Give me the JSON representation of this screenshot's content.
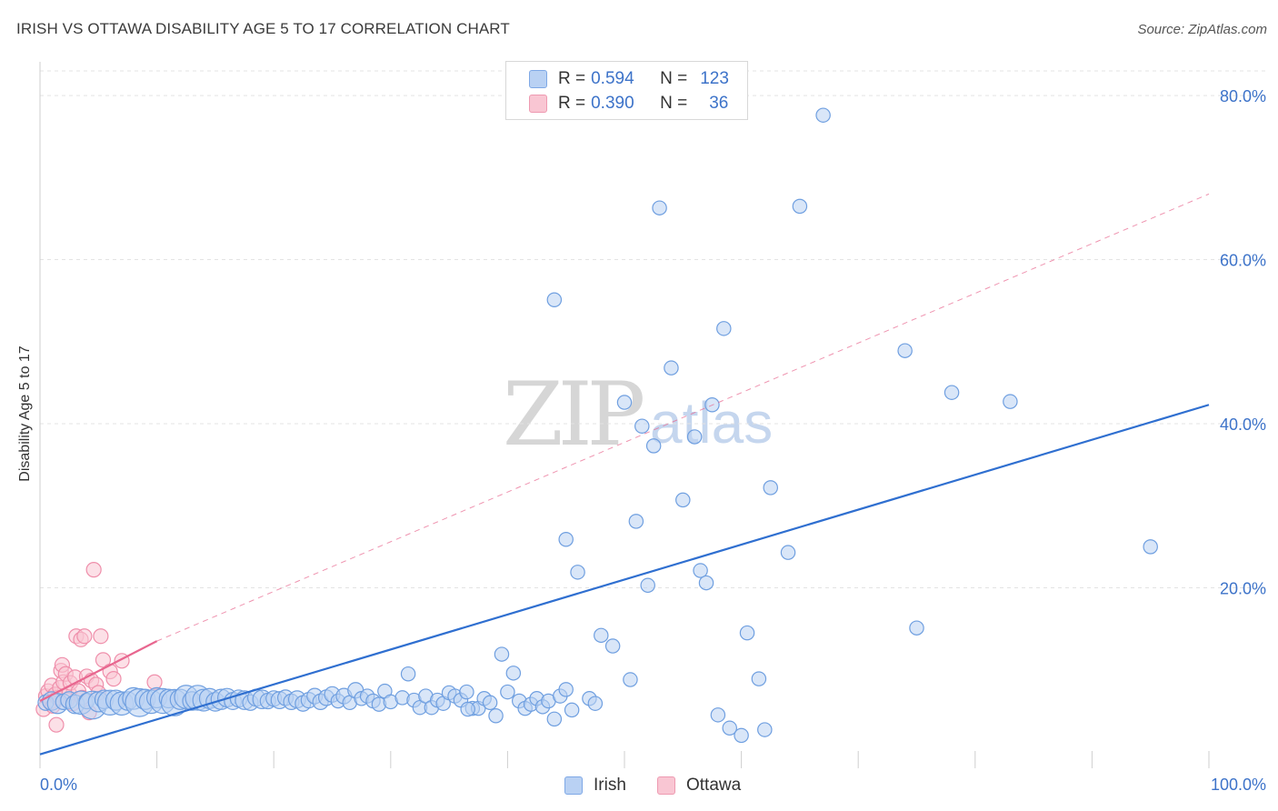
{
  "header": {
    "title": "IRISH VS OTTAWA DISABILITY AGE 5 TO 17 CORRELATION CHART",
    "source": "Source: ZipAtlas.com"
  },
  "watermark": {
    "zip": "ZIP",
    "atlas": "atlas"
  },
  "legend": {
    "irish": {
      "r_label": "R =",
      "r_value": "0.594",
      "n_label": "N =",
      "n_value": "123"
    },
    "ottawa": {
      "r_label": "R =",
      "r_value": "0.390",
      "n_label": "N =",
      "n_value": "36"
    }
  },
  "bottom_legend": {
    "irish": "Irish",
    "ottawa": "Ottawa"
  },
  "colors": {
    "irish_fill": "#b9d1f3",
    "irish_stroke": "#6f9fe0",
    "irish_line": "#2f6fd0",
    "ottawa_fill": "#f9c6d3",
    "ottawa_stroke": "#ef8fab",
    "ottawa_line": "#e8668f",
    "grid": "#e3e3e3",
    "tick_label": "#3d73c9"
  },
  "chart_data": {
    "type": "scatter",
    "title": "IRISH VS OTTAWA DISABILITY AGE 5 TO 17 CORRELATION CHART",
    "xlabel": "",
    "ylabel": "Disability Age 5 to 17",
    "xlim": [
      0,
      100
    ],
    "ylim": [
      -2,
      83
    ],
    "x_tick_labels": [
      "0.0%",
      "100.0%"
    ],
    "y_ticks": [
      20,
      40,
      60,
      80
    ],
    "y_tick_labels": [
      "20.0%",
      "40.0%",
      "60.0%",
      "80.0%"
    ],
    "grid": true,
    "legend_position": "top-center",
    "series": [
      {
        "name": "Irish",
        "R": 0.594,
        "N": 123,
        "trend": {
          "x0": 0,
          "y0": -0.3,
          "x1": 100,
          "y1": 42.3
        },
        "points": [
          [
            0.5,
            6.0,
            1.0
          ],
          [
            1.0,
            6.2,
            1.2
          ],
          [
            1.5,
            5.9,
            1.3
          ],
          [
            2.0,
            6.1,
            1.0
          ],
          [
            2.5,
            6.3,
            1.1
          ],
          [
            3.0,
            5.8,
            1.2
          ],
          [
            3.5,
            6.0,
            1.5
          ],
          [
            4.0,
            6.2,
            1.0
          ],
          [
            4.5,
            5.7,
            1.8
          ],
          [
            5.0,
            6.1,
            1.3
          ],
          [
            5.5,
            6.4,
            1.2
          ],
          [
            6.0,
            6.0,
            1.6
          ],
          [
            6.5,
            6.3,
            1.3
          ],
          [
            7.0,
            5.9,
            1.5
          ],
          [
            7.5,
            6.2,
            1.2
          ],
          [
            8.0,
            6.5,
            1.4
          ],
          [
            8.5,
            6.0,
            1.8
          ],
          [
            9.0,
            6.4,
            1.3
          ],
          [
            9.5,
            6.1,
            1.5
          ],
          [
            10.0,
            6.6,
            1.3
          ],
          [
            10.5,
            6.2,
            1.6
          ],
          [
            11.0,
            6.5,
            1.2
          ],
          [
            11.5,
            6.0,
            1.7
          ],
          [
            12.0,
            6.4,
            1.3
          ],
          [
            12.5,
            6.7,
            1.5
          ],
          [
            13.0,
            6.2,
            1.2
          ],
          [
            13.5,
            6.6,
            1.6
          ],
          [
            14.0,
            6.3,
            1.4
          ],
          [
            14.5,
            6.5,
            1.3
          ],
          [
            15.0,
            6.1,
            1.2
          ],
          [
            15.5,
            6.4,
            1.3
          ],
          [
            16.0,
            6.6,
            1.2
          ],
          [
            16.5,
            6.2,
            1.1
          ],
          [
            17.0,
            6.5,
            1.1
          ],
          [
            17.5,
            6.3,
            1.2
          ],
          [
            18.0,
            6.0,
            1.0
          ],
          [
            18.5,
            6.6,
            1.1
          ],
          [
            19.0,
            6.4,
            1.2
          ],
          [
            19.5,
            6.2,
            1.0
          ],
          [
            20.0,
            6.5,
            1.0
          ],
          [
            20.5,
            6.3,
            1.1
          ],
          [
            21.0,
            6.6,
            1.0
          ],
          [
            21.5,
            6.1,
            1.0
          ],
          [
            22.0,
            6.4,
            1.1
          ],
          [
            22.5,
            5.9,
            1.0
          ],
          [
            23.0,
            6.3,
            1.0
          ],
          [
            23.5,
            6.8,
            1.0
          ],
          [
            24.0,
            6.1,
            1.0
          ],
          [
            24.5,
            6.6,
            1.0
          ],
          [
            25.0,
            7.0,
            1.0
          ],
          [
            25.5,
            6.2,
            0.9
          ],
          [
            26.0,
            6.8,
            1.0
          ],
          [
            26.5,
            6.0,
            0.9
          ],
          [
            27.0,
            7.5,
            1.0
          ],
          [
            27.5,
            6.5,
            0.9
          ],
          [
            28.0,
            6.8,
            0.9
          ],
          [
            28.5,
            6.2,
            0.9
          ],
          [
            29.0,
            5.8,
            0.9
          ],
          [
            29.5,
            7.4,
            0.9
          ],
          [
            30.0,
            6.1,
            0.9
          ],
          [
            31.0,
            6.6,
            0.9
          ],
          [
            31.5,
            9.5,
            0.9
          ],
          [
            32.0,
            6.3,
            0.9
          ],
          [
            32.5,
            5.4,
            0.9
          ],
          [
            33.0,
            6.8,
            0.9
          ],
          [
            33.5,
            5.4,
            0.9
          ],
          [
            34.0,
            6.3,
            0.9
          ],
          [
            34.5,
            5.9,
            0.9
          ],
          [
            35.0,
            7.2,
            0.9
          ],
          [
            35.5,
            6.8,
            0.9
          ],
          [
            36.0,
            6.3,
            0.9
          ],
          [
            36.5,
            7.3,
            0.9
          ],
          [
            37.0,
            5.3,
            0.9
          ],
          [
            37.5,
            5.3,
            0.9
          ],
          [
            38.0,
            6.5,
            0.9
          ],
          [
            38.5,
            6.0,
            0.9
          ],
          [
            39.0,
            4.4,
            0.9
          ],
          [
            39.5,
            11.9,
            0.9
          ],
          [
            40.0,
            7.3,
            0.9
          ],
          [
            40.5,
            9.6,
            0.9
          ],
          [
            41.0,
            6.2,
            0.9
          ],
          [
            41.5,
            5.3,
            0.9
          ],
          [
            42.0,
            5.8,
            0.9
          ],
          [
            42.5,
            6.5,
            0.9
          ],
          [
            43.0,
            5.5,
            0.9
          ],
          [
            43.5,
            6.2,
            0.9
          ],
          [
            44.0,
            4.0,
            0.9
          ],
          [
            44.5,
            6.8,
            0.9
          ],
          [
            45.0,
            7.6,
            0.9
          ],
          [
            45.5,
            5.1,
            0.9
          ],
          [
            44.0,
            55.1,
            0.9
          ],
          [
            47.0,
            6.5,
            0.9
          ],
          [
            47.5,
            5.9,
            0.9
          ],
          [
            46.0,
            21.9,
            0.9
          ],
          [
            45.0,
            25.9,
            0.9
          ],
          [
            48.0,
            14.2,
            0.9
          ],
          [
            49.0,
            12.9,
            0.9
          ],
          [
            50.0,
            42.6,
            0.9
          ],
          [
            50.5,
            8.8,
            0.9
          ],
          [
            51.0,
            28.1,
            0.9
          ],
          [
            51.5,
            39.7,
            0.9
          ],
          [
            52.0,
            20.3,
            0.9
          ],
          [
            52.5,
            37.3,
            0.9
          ],
          [
            53.0,
            66.3,
            0.9
          ],
          [
            54.0,
            46.8,
            0.9
          ],
          [
            55.0,
            30.7,
            0.9
          ],
          [
            56.0,
            38.4,
            0.9
          ],
          [
            56.5,
            22.1,
            0.9
          ],
          [
            57.0,
            20.6,
            0.9
          ],
          [
            57.5,
            42.3,
            0.9
          ],
          [
            58.0,
            4.5,
            0.9
          ],
          [
            58.5,
            51.6,
            0.9
          ],
          [
            59.0,
            2.9,
            0.9
          ],
          [
            60.0,
            2.0,
            0.9
          ],
          [
            60.5,
            14.5,
            0.9
          ],
          [
            61.5,
            8.9,
            0.9
          ],
          [
            62.0,
            2.7,
            0.9
          ],
          [
            62.5,
            32.2,
            0.9
          ],
          [
            64.0,
            24.3,
            0.9
          ],
          [
            65.0,
            66.5,
            0.9
          ],
          [
            67.0,
            77.6,
            0.9
          ],
          [
            74.0,
            48.9,
            0.9
          ],
          [
            75.0,
            15.1,
            0.9
          ],
          [
            78.0,
            43.8,
            0.9
          ],
          [
            83.0,
            42.7,
            0.9
          ],
          [
            95.0,
            25.0,
            0.9
          ],
          [
            36.6,
            5.2,
            0.9
          ]
        ]
      },
      {
        "name": "Ottawa",
        "R": 0.39,
        "N": 36,
        "trend": {
          "x0": 0,
          "y0": 6.2,
          "x1": 10,
          "y1": 13.5
        },
        "trend_dashed_extension": {
          "x0": 10,
          "y0": 13.5,
          "x1": 100,
          "y1": 68.0
        },
        "points": [
          [
            0.3,
            5.2
          ],
          [
            0.5,
            6.8
          ],
          [
            0.7,
            7.4
          ],
          [
            0.9,
            6.1
          ],
          [
            1.0,
            8.1
          ],
          [
            1.1,
            5.6
          ],
          [
            1.3,
            7.0
          ],
          [
            1.4,
            3.3
          ],
          [
            1.5,
            6.6
          ],
          [
            1.7,
            7.8
          ],
          [
            1.8,
            9.9
          ],
          [
            1.9,
            10.6
          ],
          [
            2.0,
            8.5
          ],
          [
            2.2,
            9.5
          ],
          [
            2.3,
            6.3
          ],
          [
            2.5,
            7.1
          ],
          [
            2.6,
            8.4
          ],
          [
            2.8,
            5.9
          ],
          [
            3.0,
            9.1
          ],
          [
            3.1,
            14.1
          ],
          [
            3.3,
            7.4
          ],
          [
            3.5,
            13.7
          ],
          [
            3.6,
            6.6
          ],
          [
            3.8,
            14.1
          ],
          [
            4.0,
            9.2
          ],
          [
            4.2,
            4.8
          ],
          [
            4.4,
            8.7
          ],
          [
            4.6,
            22.2
          ],
          [
            4.8,
            8.2
          ],
          [
            5.0,
            7.2
          ],
          [
            5.2,
            14.1
          ],
          [
            5.4,
            11.2
          ],
          [
            6.0,
            9.8
          ],
          [
            6.3,
            8.9
          ],
          [
            7.0,
            11.1
          ],
          [
            9.8,
            8.5
          ]
        ]
      }
    ]
  }
}
